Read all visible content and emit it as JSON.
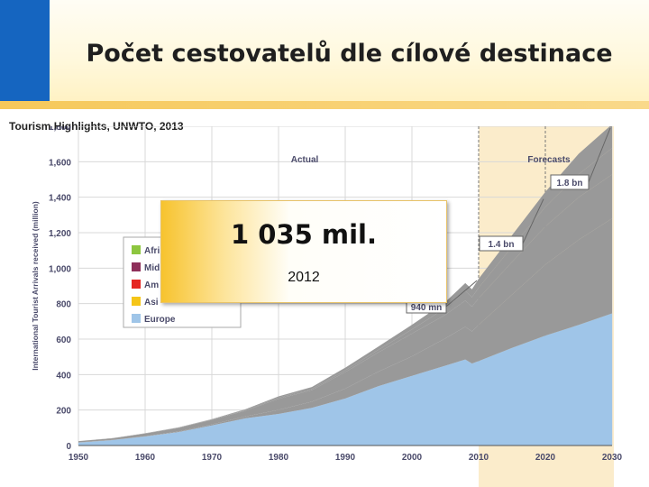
{
  "slide": {
    "title": "Počet cestovatelů dle cílové destinace",
    "source": "Tourism Highlights, UNWTO, 2013"
  },
  "callout": {
    "value": "1 035 mil.",
    "year": "2012"
  },
  "colors": {
    "slide_blue": "#1565c0",
    "Europe": "#9fc5e8",
    "Asia": "#f5c518",
    "Americas": "#e52521",
    "Middle East": "#8e2f5a",
    "Africa": "#8dc63f",
    "forecast_band": "#fbeccb",
    "axis_text": "#4a4a6a"
  },
  "chart_data": {
    "type": "area",
    "stacked": true,
    "ylabel": "International Tourist Arrivals received (million)",
    "xlim": [
      1950,
      2030
    ],
    "ylim": [
      0,
      1800
    ],
    "x_ticks": [
      1950,
      1960,
      1970,
      1980,
      1990,
      2000,
      2010,
      2020,
      2030
    ],
    "y_ticks": [
      0,
      200,
      400,
      600,
      800,
      1000,
      1200,
      1400,
      1600,
      1800
    ],
    "grid": true,
    "panel_labels": [
      "Actual",
      "Forecasts"
    ],
    "forecast_start": 2010,
    "legend": {
      "position": "left",
      "entries": [
        "Afri",
        "Mid",
        "Am",
        "Asi",
        "Europe"
      ]
    },
    "annotations": [
      {
        "text": "940 mn",
        "x": 2010,
        "y": 940
      },
      {
        "text": "1.4 bn",
        "x": 2020,
        "y": 1400
      },
      {
        "text": "1.8 bn",
        "x": 2030,
        "y": 1800
      }
    ],
    "x": [
      1950,
      1955,
      1960,
      1965,
      1970,
      1975,
      1980,
      1985,
      1990,
      1995,
      2000,
      2005,
      2008,
      2009,
      2010,
      2015,
      2020,
      2025,
      2030
    ],
    "series": [
      {
        "name": "Europe",
        "values": [
          17,
          30,
          51,
          76,
          113,
          153,
          178,
          212,
          265,
          335,
          393,
          450,
          485,
          462,
          476,
          550,
          620,
          680,
          745
        ]
      },
      {
        "name": "Asi",
        "values": [
          1,
          1,
          1,
          3,
          6,
          10,
          23,
          35,
          56,
          82,
          110,
          154,
          184,
          181,
          204,
          300,
          400,
          480,
          535
        ]
      },
      {
        "name": "Am",
        "values": [
          7,
          9,
          15,
          20,
          26,
          33,
          62,
          65,
          93,
          109,
          128,
          133,
          148,
          140,
          150,
          185,
          215,
          240,
          248
        ]
      },
      {
        "name": "Mid",
        "values": [
          0,
          1,
          1,
          2,
          2,
          4,
          7,
          8,
          10,
          14,
          24,
          37,
          55,
          53,
          60,
          85,
          110,
          130,
          149
        ]
      },
      {
        "name": "Afri",
        "values": [
          0,
          0,
          1,
          1,
          2,
          4,
          7,
          10,
          15,
          19,
          26,
          35,
          44,
          45,
          50,
          65,
          85,
          115,
          134
        ]
      }
    ]
  }
}
